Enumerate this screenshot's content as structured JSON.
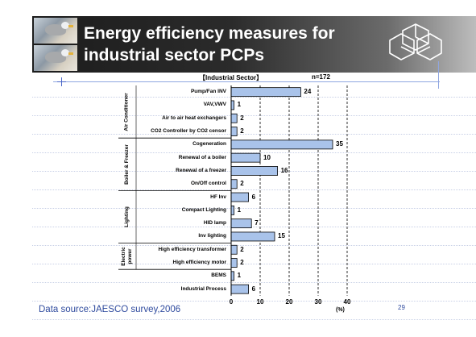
{
  "slide": {
    "title_line1": "Energy efficiency measures for",
    "title_line2": "industrial sector PCPs",
    "source": "Data source:JAESCO survey,2006",
    "page_number": "29"
  },
  "chart_data": {
    "type": "bar",
    "orientation": "horizontal",
    "title": "【Industrial Sector】",
    "annotation": "n=172",
    "xlabel": "(%)",
    "xlim": [
      0,
      40
    ],
    "xticks": [
      0,
      10,
      20,
      30,
      40
    ],
    "grid": "vertical dashed at 10, 20, 30, 40",
    "bar_color": "#a9c3ea",
    "categories": [
      "Pump/Fan INV",
      "VAV,VWV",
      "Air to air heat exchangers",
      "CO2 Controller by CO2 censor",
      "Cogeneration",
      "Renewal of a boiler",
      "Renewal of a freezer",
      "On/Off control",
      "HF Inv",
      "Compact Lighting",
      "HID lamp",
      "Inv lighting",
      "High efficiency transformer",
      "High efficiency motor",
      "BEMS",
      "Industrial Process"
    ],
    "values": [
      24,
      1,
      2,
      2,
      35,
      10,
      16,
      2,
      6,
      1,
      7,
      15,
      2,
      2,
      1,
      6
    ],
    "groups": [
      {
        "name": "Air Conditioner",
        "start": 0,
        "end": 3
      },
      {
        "name": "Boiler & Freezer",
        "start": 4,
        "end": 7
      },
      {
        "name": "Lighting",
        "start": 8,
        "end": 11
      },
      {
        "name": "Electric power",
        "start": 12,
        "end": 13
      }
    ]
  }
}
